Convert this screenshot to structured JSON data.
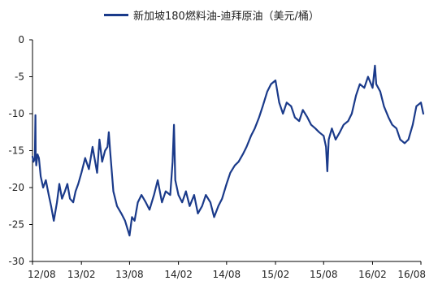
{
  "chart_data": {
    "type": "line",
    "title": "",
    "xlabel": "",
    "ylabel": "",
    "legend_position": "top",
    "grid": false,
    "colors": {
      "series": "#1a3a8a",
      "axis": "#000000",
      "text": "#222222"
    },
    "x_ticks": [
      "12/08",
      "13/02",
      "13/08",
      "14/02",
      "14/08",
      "15/02",
      "15/08",
      "16/02",
      "16/08"
    ],
    "ylim": [
      -30,
      0
    ],
    "y_ticks": [
      0,
      -5,
      -10,
      -15,
      -20,
      -25,
      -30
    ],
    "series": [
      {
        "name": "新加坡180燃料油-迪拜原油（美元/桶）",
        "x": [
          "2012-08-01",
          "2012-08-05",
          "2012-08-10",
          "2012-08-12",
          "2012-08-13",
          "2012-08-15",
          "2012-08-20",
          "2012-08-25",
          "2012-09-01",
          "2012-09-10",
          "2012-09-20",
          "2012-10-01",
          "2012-10-10",
          "2012-10-20",
          "2012-11-01",
          "2012-11-10",
          "2012-11-20",
          "2012-12-01",
          "2012-12-10",
          "2012-12-20",
          "2013-01-01",
          "2013-01-10",
          "2013-01-20",
          "2013-02-01",
          "2013-02-15",
          "2013-03-01",
          "2013-03-15",
          "2013-04-01",
          "2013-04-10",
          "2013-04-20",
          "2013-05-01",
          "2013-05-10",
          "2013-05-15",
          "2013-05-20",
          "2013-06-01",
          "2013-06-15",
          "2013-07-01",
          "2013-07-15",
          "2013-08-01",
          "2013-08-10",
          "2013-08-20",
          "2013-09-01",
          "2013-09-15",
          "2013-10-01",
          "2013-10-15",
          "2013-11-01",
          "2013-11-15",
          "2013-12-01",
          "2013-12-15",
          "2014-01-01",
          "2014-01-10",
          "2014-01-15",
          "2014-01-20",
          "2014-02-01",
          "2014-02-15",
          "2014-03-01",
          "2014-03-15",
          "2014-04-01",
          "2014-04-15",
          "2014-05-01",
          "2014-05-15",
          "2014-06-01",
          "2014-06-15",
          "2014-07-01",
          "2014-07-15",
          "2014-08-01",
          "2014-08-15",
          "2014-09-01",
          "2014-09-15",
          "2014-10-01",
          "2014-10-15",
          "2014-11-01",
          "2014-11-15",
          "2014-12-01",
          "2014-12-15",
          "2015-01-01",
          "2015-01-15",
          "2015-02-01",
          "2015-02-15",
          "2015-03-01",
          "2015-03-15",
          "2015-04-01",
          "2015-04-15",
          "2015-05-01",
          "2015-05-15",
          "2015-06-01",
          "2015-06-15",
          "2015-07-01",
          "2015-07-15",
          "2015-08-01",
          "2015-08-10",
          "2015-08-15",
          "2015-08-20",
          "2015-09-01",
          "2015-09-15",
          "2015-10-01",
          "2015-10-15",
          "2015-11-01",
          "2015-11-15",
          "2015-12-01",
          "2015-12-15",
          "2016-01-01",
          "2016-01-15",
          "2016-02-01",
          "2016-02-10",
          "2016-02-15",
          "2016-03-01",
          "2016-03-15",
          "2016-04-01",
          "2016-04-15",
          "2016-05-01",
          "2016-05-15",
          "2016-06-01",
          "2016-06-15",
          "2016-07-01",
          "2016-07-15",
          "2016-08-01",
          "2016-08-10"
        ],
        "values": [
          -15.8,
          -16.5,
          -16.0,
          -10.2,
          -15.5,
          -17.0,
          -15.5,
          -16.0,
          -18.5,
          -20.0,
          -19.0,
          -21.0,
          -22.5,
          -24.5,
          -22.0,
          -19.5,
          -21.5,
          -20.5,
          -19.5,
          -21.5,
          -22.0,
          -20.5,
          -19.5,
          -18.0,
          -16.0,
          -17.5,
          -14.5,
          -18.0,
          -13.5,
          -16.5,
          -15.0,
          -14.5,
          -12.5,
          -15.0,
          -20.5,
          -22.5,
          -23.5,
          -24.5,
          -26.5,
          -24.0,
          -24.5,
          -22.0,
          -21.0,
          -22.0,
          -23.0,
          -21.0,
          -19.0,
          -22.0,
          -20.5,
          -21.0,
          -16.5,
          -11.5,
          -19.0,
          -21.0,
          -22.0,
          -20.5,
          -22.5,
          -21.0,
          -23.5,
          -22.5,
          -21.0,
          -22.0,
          -24.0,
          -22.5,
          -21.5,
          -19.5,
          -18.0,
          -17.0,
          -16.5,
          -15.5,
          -14.5,
          -13.0,
          -12.0,
          -10.5,
          -9.0,
          -7.0,
          -6.0,
          -5.5,
          -8.5,
          -10.0,
          -8.5,
          -9.0,
          -10.5,
          -11.0,
          -9.5,
          -10.5,
          -11.5,
          -12.0,
          -12.5,
          -13.0,
          -14.5,
          -17.8,
          -13.5,
          -12.0,
          -13.5,
          -12.5,
          -11.5,
          -11.0,
          -10.0,
          -7.5,
          -6.0,
          -6.5,
          -5.0,
          -6.5,
          -3.5,
          -6.0,
          -7.0,
          -9.0,
          -10.5,
          -11.5,
          -12.0,
          -13.5,
          -14.0,
          -13.5,
          -11.5,
          -9.0,
          -8.5,
          -10.0
        ]
      }
    ]
  }
}
